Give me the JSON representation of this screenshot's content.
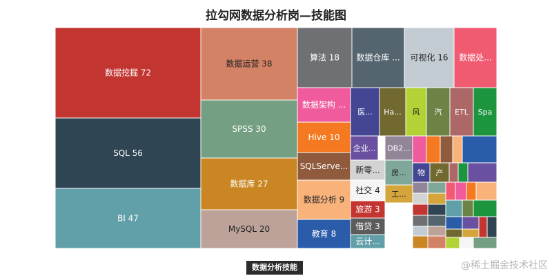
{
  "title": "拉勾网数据分析岗—技能图",
  "breadcrumb": "数据分析技能",
  "watermark": "@稀土掘金技术社区",
  "chart_data": {
    "type": "treemap",
    "title": "拉勾网数据分析岗—技能图",
    "root": "数据分析技能",
    "items": [
      {
        "name": "数据挖掘",
        "value": 72,
        "label": "数据挖掘 72",
        "color": "#c23531"
      },
      {
        "name": "SQL",
        "value": 56,
        "label": "SQL 56",
        "color": "#2f4554"
      },
      {
        "name": "BI",
        "value": 47,
        "label": "BI 47",
        "color": "#61a0a8"
      },
      {
        "name": "数据运营",
        "value": 38,
        "label": "数据运营 38",
        "color": "#d48265"
      },
      {
        "name": "SPSS",
        "value": 30,
        "label": "SPSS 30",
        "color": "#749f83"
      },
      {
        "name": "数据库",
        "value": 27,
        "label": "数据库 27",
        "color": "#ca8622"
      },
      {
        "name": "MySQL",
        "value": 20,
        "label": "MySQL 20",
        "color": "#bda29a"
      },
      {
        "name": "算法",
        "value": 18,
        "label": "算法 18",
        "color": "#6e7074"
      },
      {
        "name": "数据仓库",
        "value": 17,
        "label": "数据仓库 ...",
        "color": "#546570"
      },
      {
        "name": "可视化",
        "value": 16,
        "label": "可视化 16",
        "color": "#c4ccd3"
      },
      {
        "name": "数据处理",
        "value": 15,
        "label": "数据处...",
        "color": "#f05b72"
      },
      {
        "name": "数据架构",
        "value": 11,
        "label": "数据架构 ...",
        "color": "#ef5b9c"
      },
      {
        "name": "Hive",
        "value": 10,
        "label": "Hive 10",
        "color": "#f47920"
      },
      {
        "name": "SQLServer",
        "value": 9,
        "label": "SQLServe...",
        "color": "#905a3d"
      },
      {
        "name": "数据分析",
        "value": 9,
        "label": "数据分析 9",
        "color": "#fab27b"
      },
      {
        "name": "教育",
        "value": 8,
        "label": "教育 8",
        "color": "#2a5caa"
      },
      {
        "name": "医",
        "value": 5,
        "label": "医...",
        "color": "#444693"
      },
      {
        "name": "Ha",
        "value": 5,
        "label": "Ha...",
        "color": "#726930"
      },
      {
        "name": "风",
        "value": 5,
        "label": "风",
        "color": "#b2d235"
      },
      {
        "name": "汽",
        "value": 5,
        "label": "汽",
        "color": "#6d8346"
      },
      {
        "name": "ETL",
        "value": 5,
        "label": "ETL",
        "color": "#ac6767"
      },
      {
        "name": "Spa",
        "value": 5,
        "label": "Spa",
        "color": "#1d953f"
      },
      {
        "name": "企业",
        "value": 4,
        "label": "企业...",
        "color": "#6950a1"
      },
      {
        "name": "DB2",
        "value": 4,
        "label": "DB2...",
        "color": "#918597"
      },
      {
        "name": "新零",
        "value": 4,
        "label": "新零...",
        "color": "#d3d3d3"
      },
      {
        "name": "房",
        "value": 4,
        "label": "房...",
        "color": "#7fa89a"
      },
      {
        "name": "社交",
        "value": 4,
        "label": "社交 4",
        "color": "#f5f5f5"
      },
      {
        "name": "工",
        "value": 4,
        "label": "工...",
        "color": "#d4a53a"
      },
      {
        "name": "旅游",
        "value": 3,
        "label": "旅游 3",
        "color": "#c23531"
      },
      {
        "name": "借贷",
        "value": 3,
        "label": "借贷 3",
        "color": "#5c5c5c"
      },
      {
        "name": "云计",
        "value": 3,
        "label": "云计...",
        "color": "#61a0a8"
      },
      {
        "name": "物",
        "value": 3,
        "label": "物",
        "color": "#444693"
      },
      {
        "name": "产",
        "value": 3,
        "label": "产",
        "color": "#726930"
      }
    ]
  }
}
